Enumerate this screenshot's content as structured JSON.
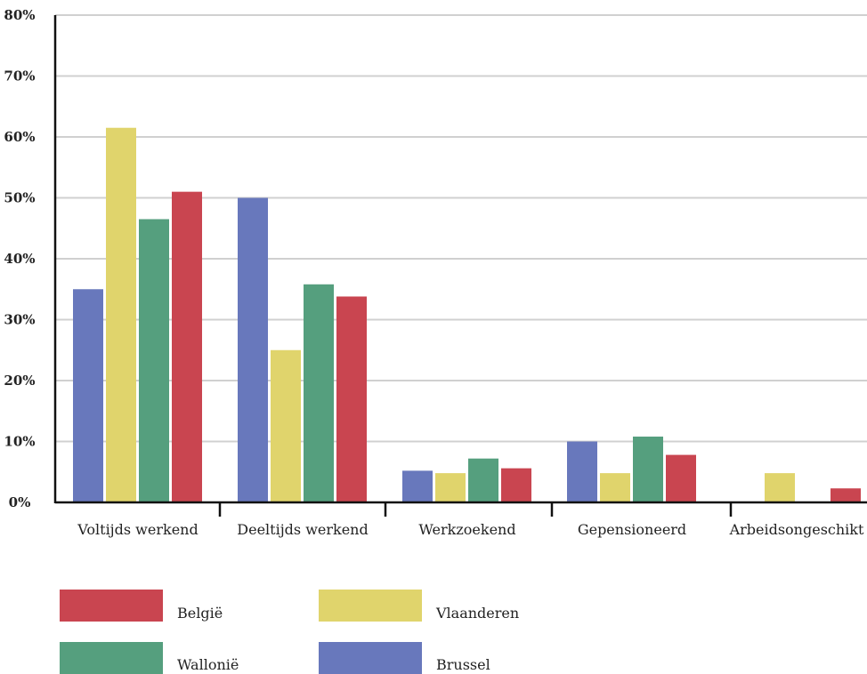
{
  "chart_data": {
    "type": "bar",
    "categories": [
      "Voltijds werkend",
      "Deeltijds werkend",
      "Werkzoekend",
      "Gepensioneerd",
      "Arbeidsongeschikt"
    ],
    "series": [
      {
        "name": "Brussel",
        "color": "#6878bc",
        "values": [
          35,
          50,
          5.2,
          10,
          null
        ]
      },
      {
        "name": "Vlaanderen",
        "color": "#e0d46c",
        "values": [
          61.5,
          25,
          4.8,
          4.8,
          4.8
        ]
      },
      {
        "name": "Wallonië",
        "color": "#559f7e",
        "values": [
          46.5,
          35.8,
          7.2,
          10.8,
          null
        ]
      },
      {
        "name": "België",
        "color": "#c94550",
        "values": [
          51,
          33.8,
          5.6,
          7.8,
          2.3
        ]
      }
    ],
    "ylim": [
      0,
      80
    ],
    "yticks": [
      "0%",
      "10%",
      "20%",
      "30%",
      "40%",
      "50%",
      "60%",
      "70%",
      "80%"
    ],
    "grid": true,
    "legend_position": "bottom-left"
  },
  "legend": [
    {
      "label": "België",
      "color": "#c94550"
    },
    {
      "label": "Vlaanderen",
      "color": "#e0d46c"
    },
    {
      "label": "Wallonië",
      "color": "#559f7e"
    },
    {
      "label": "Brussel",
      "color": "#6878bc"
    }
  ]
}
